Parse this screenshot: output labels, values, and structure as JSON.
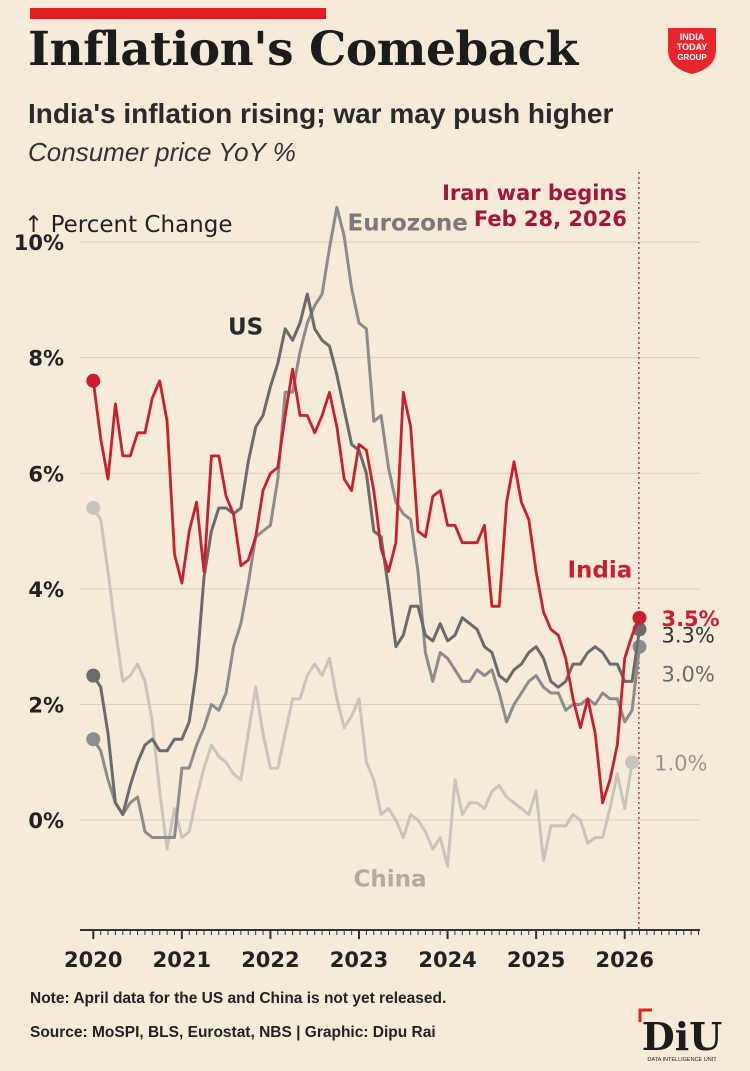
{
  "header": {
    "title": "Inflation's Comeback",
    "subtitle": "India's inflation rising; war may push higher",
    "subtitle2": "Consumer price YoY %",
    "logo_text": "INDIA TODAY GROUP"
  },
  "footer": {
    "note": "Note: April data for the US and China is not yet released.",
    "source": "Source: MoSPI, BLS, Eurostat, NBS | Graphic: Dipu Rai",
    "logo_text": "DIU",
    "logo_subtext": "DATA INTELLIGENCE UNIT"
  },
  "chart_data": {
    "type": "line",
    "ylabel": "↑ Percent Change",
    "yticks": [
      0,
      2,
      4,
      6,
      8,
      10
    ],
    "ytick_labels": [
      "0%",
      "2%",
      "4%",
      "6%",
      "8%",
      "10%"
    ],
    "ylim": [
      -1.9,
      10.9
    ],
    "xticks": [
      2020,
      2021,
      2022,
      2023,
      2024,
      2025,
      2026
    ],
    "xlim": [
      2019.85,
      2026.85
    ],
    "grid": "horizontal",
    "annotation": {
      "text_line1": "Iran war begins",
      "text_line2": "Feb 28, 2026",
      "x": 2026.16,
      "color": "#a3153a"
    },
    "series": [
      {
        "name": "India",
        "color": "#c8202f",
        "end_label": "3.5%",
        "start_x": 2020.0,
        "values": [
          7.6,
          6.6,
          5.9,
          7.2,
          6.3,
          6.3,
          6.7,
          6.7,
          7.3,
          7.6,
          6.9,
          4.6,
          4.1,
          5.0,
          5.5,
          4.3,
          6.3,
          6.3,
          5.6,
          5.3,
          4.4,
          4.5,
          4.9,
          5.7,
          6.0,
          6.1,
          7.0,
          7.8,
          7.0,
          7.0,
          6.7,
          7.0,
          7.4,
          6.8,
          5.9,
          5.7,
          6.5,
          6.4,
          5.7,
          4.7,
          4.3,
          4.8,
          7.4,
          6.8,
          5.0,
          4.9,
          5.6,
          5.7,
          5.1,
          5.1,
          4.8,
          4.8,
          4.8,
          5.1,
          3.7,
          3.7,
          5.5,
          6.2,
          5.5,
          5.2,
          4.3,
          3.6,
          3.3,
          3.2,
          2.8,
          2.1,
          1.6,
          2.1,
          1.5,
          0.3,
          0.7,
          1.3,
          2.8,
          3.2,
          3.5
        ]
      },
      {
        "name": "US",
        "color": "#6b6b6b",
        "end_label": "3.3%",
        "start_x": 2020.0,
        "values": [
          2.5,
          2.3,
          1.5,
          0.3,
          0.1,
          0.6,
          1.0,
          1.3,
          1.4,
          1.2,
          1.2,
          1.4,
          1.4,
          1.7,
          2.6,
          4.2,
          5.0,
          5.4,
          5.4,
          5.3,
          5.4,
          6.2,
          6.8,
          7.0,
          7.5,
          7.9,
          8.5,
          8.3,
          8.6,
          9.1,
          8.5,
          8.3,
          8.2,
          7.7,
          7.1,
          6.5,
          6.4,
          6.0,
          5.0,
          4.9,
          4.0,
          3.0,
          3.2,
          3.7,
          3.7,
          3.2,
          3.1,
          3.4,
          3.1,
          3.2,
          3.5,
          3.4,
          3.3,
          3.0,
          2.9,
          2.5,
          2.4,
          2.6,
          2.7,
          2.9,
          3.0,
          2.8,
          2.4,
          2.3,
          2.4,
          2.7,
          2.7,
          2.9,
          3.0,
          2.9,
          2.7,
          2.7,
          2.4,
          2.4,
          3.3
        ]
      },
      {
        "name": "Eurozone",
        "color": "#8c8c8c",
        "end_label": "3.0%",
        "start_x": 2020.0,
        "values": [
          1.4,
          1.2,
          0.7,
          0.3,
          0.1,
          0.3,
          0.4,
          -0.2,
          -0.3,
          -0.3,
          -0.3,
          -0.3,
          0.9,
          0.9,
          1.3,
          1.6,
          2.0,
          1.9,
          2.2,
          3.0,
          3.4,
          4.1,
          4.9,
          5.0,
          5.1,
          5.9,
          7.4,
          7.4,
          8.1,
          8.6,
          8.9,
          9.1,
          9.9,
          10.6,
          10.1,
          9.2,
          8.6,
          8.5,
          6.9,
          7.0,
          6.1,
          5.5,
          5.3,
          5.2,
          4.3,
          2.9,
          2.4,
          2.9,
          2.8,
          2.6,
          2.4,
          2.4,
          2.6,
          2.5,
          2.6,
          2.2,
          1.7,
          2.0,
          2.2,
          2.4,
          2.5,
          2.3,
          2.2,
          2.2,
          1.9,
          2.0,
          2.0,
          2.1,
          2.0,
          2.2,
          2.1,
          2.1,
          1.7,
          1.9,
          3.0
        ]
      },
      {
        "name": "China",
        "color": "#c8c3bb",
        "end_label": "1.0%",
        "start_x": 2020.0,
        "values": [
          5.4,
          5.2,
          4.3,
          3.3,
          2.4,
          2.5,
          2.7,
          2.4,
          1.7,
          0.5,
          -0.5,
          0.2,
          -0.3,
          -0.2,
          0.4,
          0.9,
          1.3,
          1.1,
          1.0,
          0.8,
          0.7,
          1.5,
          2.3,
          1.5,
          0.9,
          0.9,
          1.5,
          2.1,
          2.1,
          2.5,
          2.7,
          2.5,
          2.8,
          2.1,
          1.6,
          1.8,
          2.1,
          1.0,
          0.7,
          0.1,
          0.2,
          0.0,
          -0.3,
          0.1,
          0.0,
          -0.2,
          -0.5,
          -0.3,
          -0.8,
          0.7,
          0.1,
          0.3,
          0.3,
          0.2,
          0.5,
          0.6,
          0.4,
          0.3,
          0.2,
          0.1,
          0.5,
          -0.7,
          -0.1,
          -0.1,
          -0.1,
          0.1,
          0.0,
          -0.4,
          -0.3,
          -0.3,
          0.2,
          0.8,
          0.2,
          1.0
        ]
      }
    ],
    "series_labels": [
      {
        "series": "Eurozone",
        "text": "Eurozone",
        "x": 2023.55,
        "y": 10.2
      },
      {
        "series": "US",
        "text": "US",
        "x": 2021.72,
        "y": 8.4
      },
      {
        "series": "India",
        "text": "India",
        "x": 2025.72,
        "y": 4.2
      },
      {
        "series": "China",
        "text": "China",
        "x": 2023.35,
        "y": -1.15
      }
    ]
  }
}
